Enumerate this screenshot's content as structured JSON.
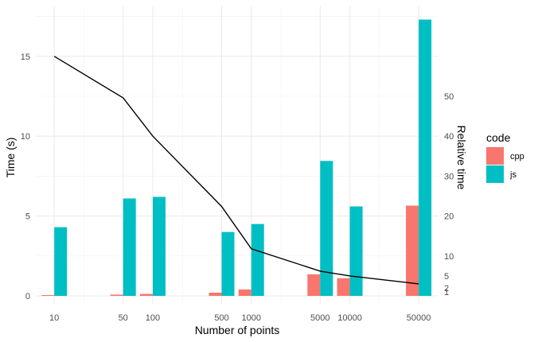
{
  "chart_data": {
    "type": "bar",
    "xlabel": "Number of points",
    "ylabel": "Time (s)",
    "y2label": "Relative time",
    "x_scale": "log10",
    "x_ticks": [
      10,
      50,
      100,
      500,
      1000,
      5000,
      10000,
      50000
    ],
    "x_tick_labels": [
      "10",
      "50",
      "100",
      "500",
      "1000",
      "5000",
      "10000",
      "50000"
    ],
    "y_ticks": [
      0,
      5,
      10,
      15
    ],
    "y_tick_labels": [
      "0",
      "5",
      "10",
      "15"
    ],
    "ylim": [
      0,
      17.3
    ],
    "y2_ticks": [
      1,
      2,
      5,
      10,
      20,
      30,
      40,
      50
    ],
    "y2_tick_labels": [
      "1",
      "2",
      "5",
      "10",
      "20",
      "30",
      "40",
      "50"
    ],
    "y2_transform": "y2 = 0.25 * y",
    "grid": true,
    "legend": {
      "title": "code",
      "position": "right",
      "entries": [
        {
          "label": "cpp",
          "color": "#F8766D"
        },
        {
          "label": "js",
          "color": "#00BFC4"
        }
      ]
    },
    "series": [
      {
        "name": "cpp",
        "type": "bar",
        "color": "#F8766D",
        "x": [
          10,
          50,
          100,
          500,
          1000,
          5000,
          10000,
          50000
        ],
        "values": [
          0.05,
          0.08,
          0.12,
          0.2,
          0.4,
          1.35,
          1.1,
          5.65
        ]
      },
      {
        "name": "js",
        "type": "bar",
        "color": "#00BFC4",
        "x": [
          10,
          50,
          100,
          500,
          1000,
          5000,
          10000,
          50000
        ],
        "values": [
          4.3,
          6.1,
          6.2,
          4.0,
          4.5,
          8.45,
          5.6,
          17.3
        ]
      },
      {
        "type": "line",
        "color": "#000000",
        "x": [
          10,
          50,
          100,
          500,
          1000,
          5000,
          10000,
          50000
        ],
        "values": [
          15.0,
          12.4,
          10.0,
          5.6,
          2.95,
          1.55,
          1.25,
          0.75
        ]
      }
    ]
  }
}
